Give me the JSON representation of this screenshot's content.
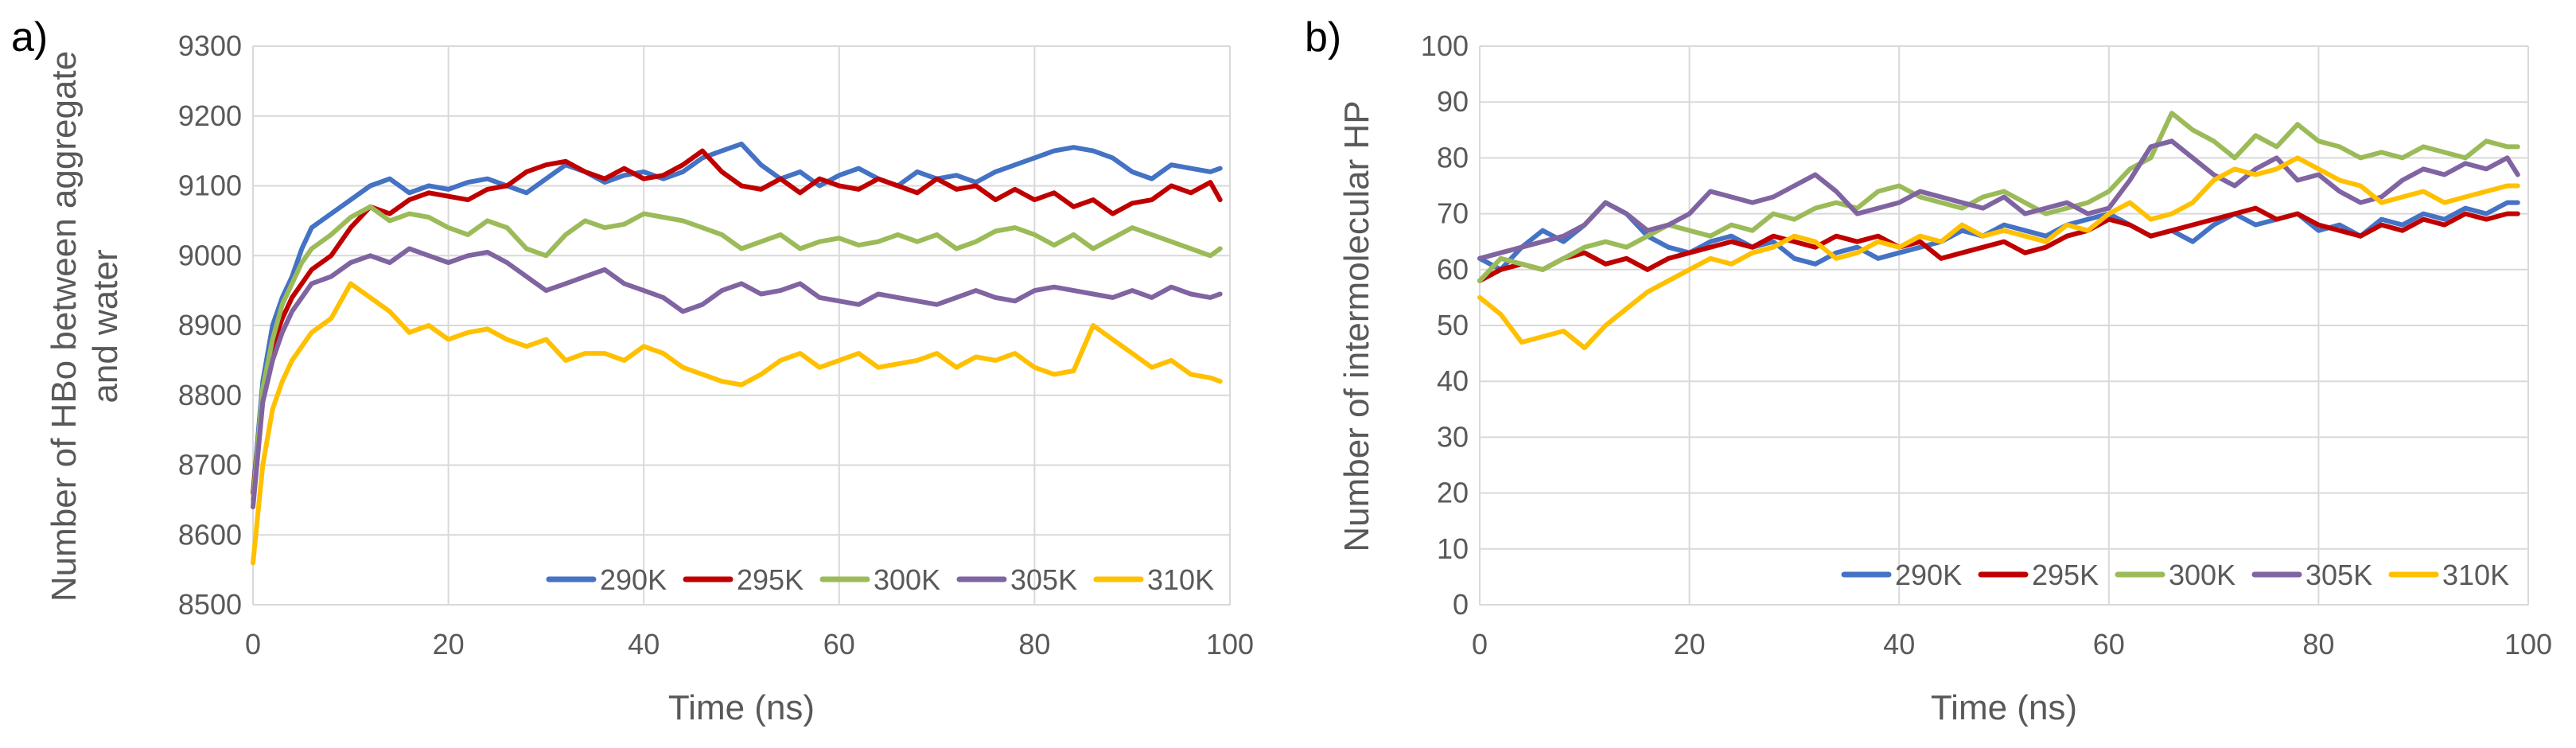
{
  "chart_data": [
    {
      "type": "line",
      "panel_label": "a)",
      "title": "",
      "xlabel": "Time (ns)",
      "ylabel_lines": [
        "Number of HBo between aggregate",
        "and water"
      ],
      "xlim": [
        0,
        100
      ],
      "ylim": [
        8500,
        9300
      ],
      "grid": true,
      "legend_position": "bottom-right",
      "x_ticks": [
        "0",
        "20",
        "40",
        "60",
        "80",
        "100"
      ],
      "y_ticks": [
        "8500",
        "8600",
        "8700",
        "8800",
        "8900",
        "9000",
        "9100",
        "9200",
        "9300"
      ],
      "x": [
        0,
        1,
        2,
        3,
        4,
        5,
        6,
        8,
        10,
        12,
        14,
        16,
        18,
        20,
        22,
        24,
        26,
        28,
        30,
        32,
        34,
        36,
        38,
        40,
        42,
        44,
        46,
        48,
        50,
        52,
        54,
        56,
        58,
        60,
        62,
        64,
        66,
        68,
        70,
        72,
        74,
        76,
        78,
        80,
        82,
        84,
        86,
        88,
        90,
        92,
        94,
        96,
        98,
        99
      ],
      "series": [
        {
          "name": "290K",
          "color": "#4472C4",
          "values": [
            8660,
            8820,
            8900,
            8940,
            8970,
            9010,
            9040,
            9060,
            9080,
            9100,
            9110,
            9090,
            9100,
            9095,
            9105,
            9110,
            9100,
            9090,
            9110,
            9130,
            9120,
            9105,
            9115,
            9120,
            9110,
            9120,
            9140,
            9150,
            9160,
            9130,
            9110,
            9120,
            9100,
            9115,
            9125,
            9110,
            9100,
            9120,
            9110,
            9115,
            9105,
            9120,
            9130,
            9140,
            9150,
            9155,
            9150,
            9140,
            9120,
            9110,
            9130,
            9125,
            9120,
            9125
          ]
        },
        {
          "name": "295K",
          "color": "#C00000",
          "values": [
            8660,
            8800,
            8870,
            8910,
            8940,
            8960,
            8980,
            9000,
            9040,
            9070,
            9060,
            9080,
            9090,
            9085,
            9080,
            9095,
            9100,
            9120,
            9130,
            9135,
            9120,
            9110,
            9125,
            9110,
            9115,
            9130,
            9150,
            9120,
            9100,
            9095,
            9110,
            9090,
            9110,
            9100,
            9095,
            9110,
            9100,
            9090,
            9110,
            9095,
            9100,
            9080,
            9095,
            9080,
            9090,
            9070,
            9080,
            9060,
            9075,
            9080,
            9100,
            9090,
            9105,
            9080
          ]
        },
        {
          "name": "300K",
          "color": "#9BBB59",
          "values": [
            8650,
            8810,
            8880,
            8930,
            8960,
            8990,
            9010,
            9030,
            9055,
            9070,
            9050,
            9060,
            9055,
            9040,
            9030,
            9050,
            9040,
            9010,
            9000,
            9030,
            9050,
            9040,
            9045,
            9060,
            9055,
            9050,
            9040,
            9030,
            9010,
            9020,
            9030,
            9010,
            9020,
            9025,
            9015,
            9020,
            9030,
            9020,
            9030,
            9010,
            9020,
            9035,
            9040,
            9030,
            9015,
            9030,
            9010,
            9025,
            9040,
            9030,
            9020,
            9010,
            9000,
            9010
          ]
        },
        {
          "name": "305K",
          "color": "#8064A2",
          "values": [
            8640,
            8790,
            8850,
            8890,
            8920,
            8940,
            8960,
            8970,
            8990,
            9000,
            8990,
            9010,
            9000,
            8990,
            9000,
            9005,
            8990,
            8970,
            8950,
            8960,
            8970,
            8980,
            8960,
            8950,
            8940,
            8920,
            8930,
            8950,
            8960,
            8945,
            8950,
            8960,
            8940,
            8935,
            8930,
            8945,
            8940,
            8935,
            8930,
            8940,
            8950,
            8940,
            8935,
            8950,
            8955,
            8950,
            8945,
            8940,
            8950,
            8940,
            8955,
            8945,
            8940,
            8945
          ]
        },
        {
          "name": "310K",
          "color": "#FFC000",
          "values": [
            8560,
            8700,
            8780,
            8820,
            8850,
            8870,
            8890,
            8910,
            8960,
            8940,
            8920,
            8890,
            8900,
            8880,
            8890,
            8895,
            8880,
            8870,
            8880,
            8850,
            8860,
            8860,
            8850,
            8870,
            8860,
            8840,
            8830,
            8820,
            8815,
            8830,
            8850,
            8860,
            8840,
            8850,
            8860,
            8840,
            8845,
            8850,
            8860,
            8840,
            8855,
            8850,
            8860,
            8840,
            8830,
            8835,
            8900,
            8880,
            8860,
            8840,
            8850,
            8830,
            8825,
            8820
          ]
        }
      ]
    },
    {
      "type": "line",
      "panel_label": "b)",
      "title": "",
      "xlabel": "Time (ns)",
      "ylabel_lines": [
        "Number of intermolecular HP"
      ],
      "xlim": [
        0,
        100
      ],
      "ylim": [
        0,
        100
      ],
      "grid": true,
      "legend_position": "bottom-right",
      "x_ticks": [
        "0",
        "20",
        "40",
        "60",
        "80",
        "100"
      ],
      "y_ticks": [
        "0",
        "10",
        "20",
        "30",
        "40",
        "50",
        "60",
        "70",
        "80",
        "90",
        "100"
      ],
      "x": [
        0,
        2,
        4,
        6,
        8,
        10,
        12,
        14,
        16,
        18,
        20,
        22,
        24,
        26,
        28,
        30,
        32,
        34,
        36,
        38,
        40,
        42,
        44,
        46,
        48,
        50,
        52,
        54,
        56,
        58,
        60,
        62,
        64,
        66,
        68,
        70,
        72,
        74,
        76,
        78,
        80,
        82,
        84,
        86,
        88,
        90,
        92,
        94,
        96,
        98,
        99
      ],
      "series": [
        {
          "name": "290K",
          "color": "#4472C4",
          "values": [
            62,
            60,
            64,
            67,
            65,
            68,
            72,
            70,
            66,
            64,
            63,
            65,
            66,
            64,
            65,
            62,
            61,
            63,
            64,
            62,
            63,
            64,
            65,
            67,
            66,
            68,
            67,
            66,
            68,
            69,
            70,
            68,
            66,
            67,
            65,
            68,
            70,
            68,
            69,
            70,
            67,
            68,
            66,
            69,
            68,
            70,
            69,
            71,
            70,
            72,
            72
          ]
        },
        {
          "name": "295K",
          "color": "#C00000",
          "values": [
            58,
            60,
            61,
            60,
            62,
            63,
            61,
            62,
            60,
            62,
            63,
            64,
            65,
            64,
            66,
            65,
            64,
            66,
            65,
            66,
            64,
            65,
            62,
            63,
            64,
            65,
            63,
            64,
            66,
            67,
            69,
            68,
            66,
            67,
            68,
            69,
            70,
            71,
            69,
            70,
            68,
            67,
            66,
            68,
            67,
            69,
            68,
            70,
            69,
            70,
            70
          ]
        },
        {
          "name": "300K",
          "color": "#9BBB59",
          "values": [
            58,
            62,
            61,
            60,
            62,
            64,
            65,
            64,
            66,
            68,
            67,
            66,
            68,
            67,
            70,
            69,
            71,
            72,
            71,
            74,
            75,
            73,
            72,
            71,
            73,
            74,
            72,
            70,
            71,
            72,
            74,
            78,
            80,
            88,
            85,
            83,
            80,
            84,
            82,
            86,
            83,
            82,
            80,
            81,
            80,
            82,
            81,
            80,
            83,
            82,
            82
          ]
        },
        {
          "name": "305K",
          "color": "#8064A2",
          "values": [
            62,
            63,
            64,
            65,
            66,
            68,
            72,
            70,
            67,
            68,
            70,
            74,
            73,
            72,
            73,
            75,
            77,
            74,
            70,
            71,
            72,
            74,
            73,
            72,
            71,
            73,
            70,
            71,
            72,
            70,
            71,
            76,
            82,
            83,
            80,
            77,
            75,
            78,
            80,
            76,
            77,
            74,
            72,
            73,
            76,
            78,
            77,
            79,
            78,
            80,
            77
          ]
        },
        {
          "name": "310K",
          "color": "#FFC000",
          "values": [
            55,
            52,
            47,
            48,
            49,
            46,
            50,
            53,
            56,
            58,
            60,
            62,
            61,
            63,
            64,
            66,
            65,
            62,
            63,
            65,
            64,
            66,
            65,
            68,
            66,
            67,
            66,
            65,
            68,
            67,
            70,
            72,
            69,
            70,
            72,
            76,
            78,
            77,
            78,
            80,
            78,
            76,
            75,
            72,
            73,
            74,
            72,
            73,
            74,
            75,
            75
          ]
        }
      ]
    }
  ]
}
